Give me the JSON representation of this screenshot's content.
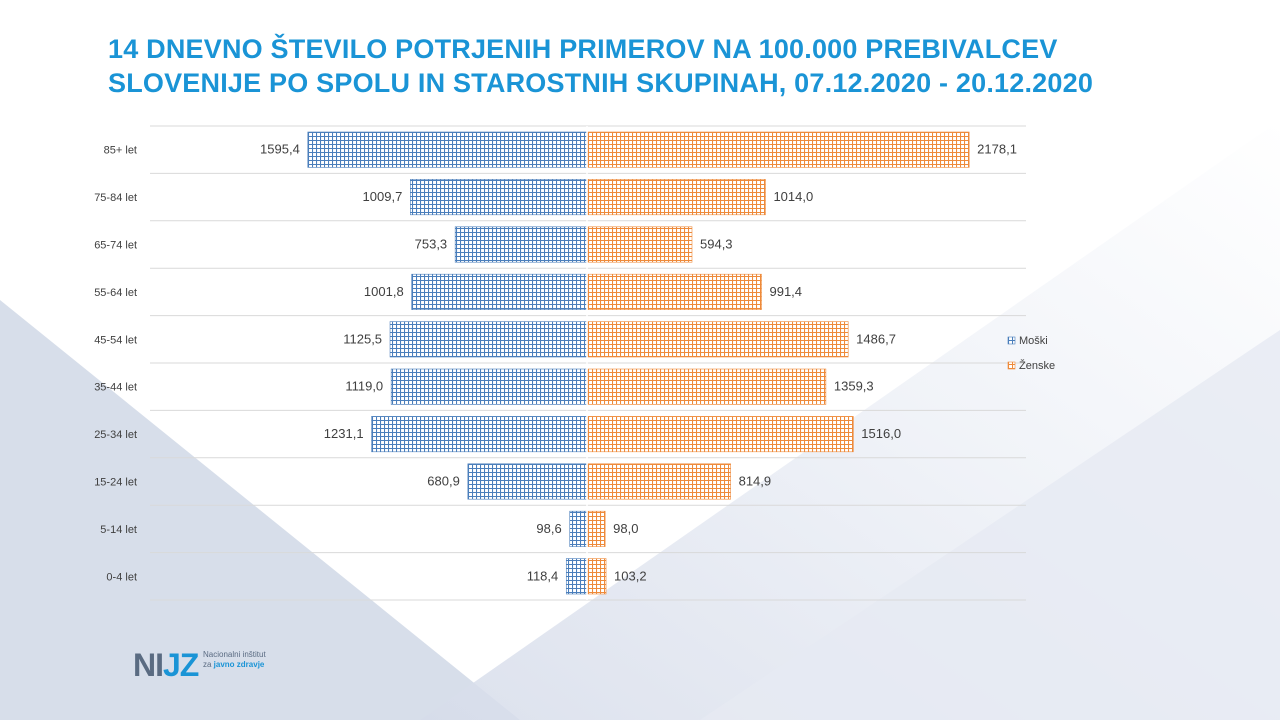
{
  "title": {
    "line1": "14 DNEVNO ŠTEVILO POTRJENIH PRIMEROV NA 100.000 PREBIVALCEV",
    "line2": "SLOVENIJE PO SPOLU IN STAROSTNIH SKUPINAH, 07.12.2020 - 20.12.2020"
  },
  "logo": {
    "mark_left": "NI",
    "mark_right": "JZ",
    "line1": "Nacionalni inštitut",
    "line2_prefix": "za ",
    "line2_bold": "javno zdravje"
  },
  "colors": {
    "title": "#1a94d6",
    "male": "#4a7ebb",
    "female": "#ee8a3a",
    "male_bg": "#ffffff",
    "female_bg": "#ffffff",
    "grid": "#d9d9d9",
    "label": "#404040"
  },
  "chart_data": {
    "type": "bar",
    "orientation": "horizontal-diverging",
    "title": "14 DNEVNO ŠTEVILO POTRJENIH PRIMEROV NA 100.000 PREBIVALCEV SLOVENIJE PO SPOLU IN STAROSTNIH SKUPINAH, 07.12.2020 - 20.12.2020",
    "categories": [
      "85+ let",
      "75-84 let",
      "65-74 let",
      "55-64 let",
      "45-54 let",
      "35-44 let",
      "25-34 let",
      "15-24 let",
      "5-14 let",
      "0-4 let"
    ],
    "series": [
      {
        "name": "Moški",
        "side": "left",
        "values": [
          1595.4,
          1009.7,
          753.3,
          1001.8,
          1125.5,
          1119.0,
          1231.1,
          680.9,
          98.6,
          118.4
        ],
        "labels": [
          "1595,4",
          "1009,7",
          "753,3",
          "1001,8",
          "1125,5",
          "1119,0",
          "1231,1",
          "680,9",
          "98,6",
          "118,4"
        ]
      },
      {
        "name": "Ženske",
        "side": "right",
        "values": [
          2178.1,
          1014.0,
          594.3,
          991.4,
          1486.7,
          1359.3,
          1516.0,
          814.9,
          98.0,
          103.2
        ],
        "labels": [
          "2178,1",
          "1014,0",
          "594,3",
          "991,4",
          "1486,7",
          "1359,3",
          "1516,0",
          "814,9",
          "98,0",
          "103,2"
        ]
      }
    ],
    "xlim": [
      -2500,
      2500
    ],
    "legend": "right"
  }
}
